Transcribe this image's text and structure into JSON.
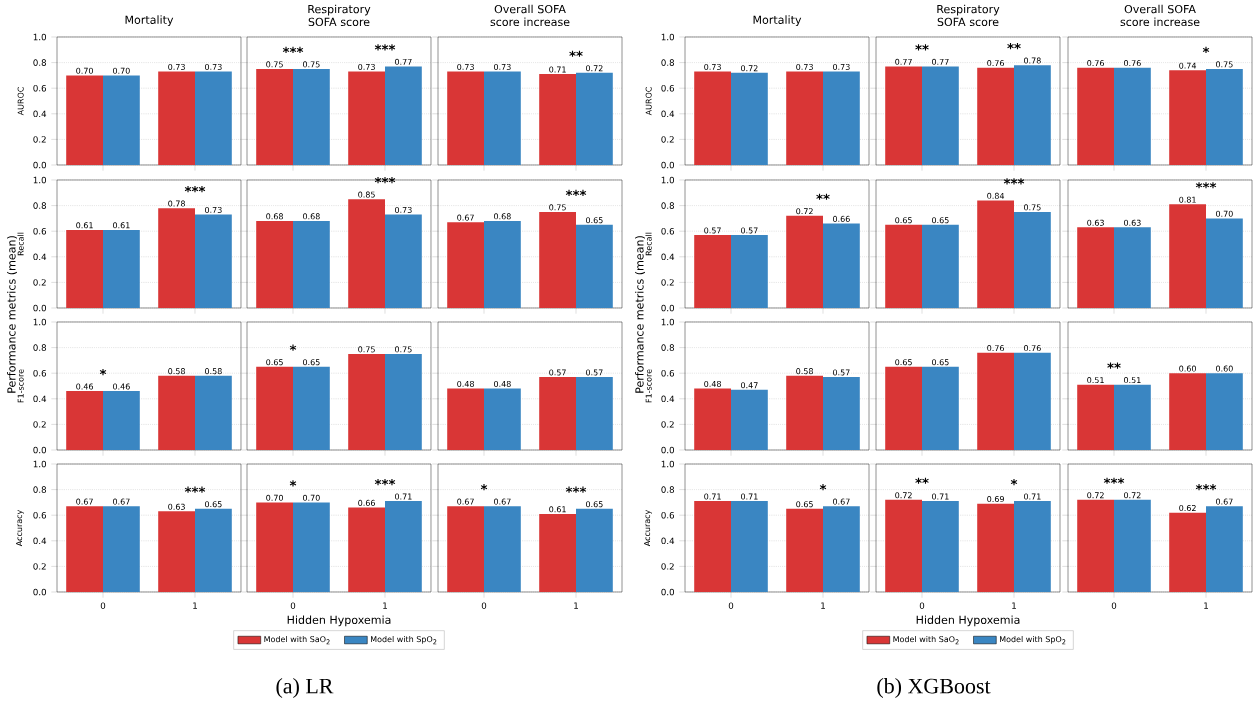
{
  "chart_data": [
    {
      "type": "bar",
      "title": "Mortality",
      "ylabel": "AUROC",
      "categories": [
        "0",
        "1"
      ],
      "series": [
        {
          "color": "#d93636",
          "values": [
            0.7,
            0.73
          ],
          "value_labels": [
            "0.70",
            "0.73"
          ]
        },
        {
          "color": "#3a86c2",
          "values": [
            0.7,
            0.73
          ],
          "value_labels": [
            "0.70",
            "0.73"
          ]
        }
      ],
      "ylim": [
        0,
        1
      ],
      "yticks": [
        {
          "value": 0,
          "label": "0.0"
        },
        {
          "value": 0.2,
          "label": "0.2"
        },
        {
          "value": 0.4,
          "label": "0.4"
        },
        {
          "value": 0.6,
          "label": "0.6"
        },
        {
          "value": 0.8,
          "label": "0.8"
        },
        {
          "value": 1,
          "label": "1.0"
        }
      ],
      "grid": "y",
      "tick_labels": "y"
    },
    {
      "type": "bar",
      "title": "Respiratory SOFA score",
      "categories": [
        "0",
        "1"
      ],
      "series": [
        {
          "color": "#d93636",
          "values": [
            0.75,
            0.73
          ],
          "value_labels": [
            "0.75",
            "0.73"
          ]
        },
        {
          "color": "#3a86c2",
          "values": [
            0.75,
            0.77
          ],
          "value_labels": [
            "0.75",
            "0.77"
          ]
        }
      ],
      "ylim": [
        0,
        1
      ],
      "yticks": [
        0,
        0.2,
        0.4,
        0.6,
        0.8,
        1
      ],
      "grid": "y",
      "tick_labels": false,
      "annotations": [
        "***",
        "***"
      ]
    },
    {
      "type": "bar",
      "title": "Overall SOFA score increase",
      "categories": [
        "0",
        "1"
      ],
      "series": [
        {
          "color": "#d93636",
          "values": [
            0.73,
            0.71
          ],
          "value_labels": [
            "0.73",
            "0.71"
          ]
        },
        {
          "color": "#3a86c2",
          "values": [
            0.73,
            0.72
          ],
          "value_labels": [
            "0.73",
            "0.72"
          ]
        }
      ],
      "ylim": [
        0,
        1
      ],
      "yticks": [
        0,
        0.2,
        0.4,
        0.6,
        0.8,
        1
      ],
      "grid": "y",
      "tick_labels": false,
      "annotations": [
        "**"
      ]
    },
    {
      "type": "bar",
      "ylabel": "Recall",
      "categories": [
        "0",
        "1"
      ],
      "series": [
        {
          "color": "#d93636",
          "values": [
            0.61,
            0.78
          ],
          "value_labels": [
            "0.61",
            "0.78"
          ]
        },
        {
          "color": "#3a86c2",
          "values": [
            0.61,
            0.73
          ],
          "value_labels": [
            "0.61",
            "0.73"
          ]
        }
      ],
      "ylim": [
        0,
        1
      ],
      "yticks": [
        {
          "value": 0,
          "label": "0.0"
        },
        {
          "value": 0.2,
          "label": "0.2"
        },
        {
          "value": 0.4,
          "label": "0.4"
        },
        {
          "value": 0.6,
          "label": "0.6"
        },
        {
          "value": 0.8,
          "label": "0.8"
        },
        {
          "value": 1,
          "label": "1.0"
        }
      ],
      "grid": "y",
      "tick_labels": "y",
      "annotations": [
        "***"
      ]
    },
    {
      "type": "bar",
      "categories": [
        "0",
        "1"
      ],
      "series": [
        {
          "color": "#d93636",
          "values": [
            0.68,
            0.85
          ],
          "value_labels": [
            "0.68",
            "0.85"
          ]
        },
        {
          "color": "#3a86c2",
          "values": [
            0.68,
            0.73
          ],
          "value_labels": [
            "0.68",
            "0.73"
          ]
        }
      ],
      "ylim": [
        0,
        1
      ],
      "yticks": [
        0,
        0.2,
        0.4,
        0.6,
        0.8,
        1
      ],
      "grid": "y",
      "tick_labels": false,
      "annotations": [
        "***"
      ]
    },
    {
      "type": "bar",
      "categories": [
        "0",
        "1"
      ],
      "series": [
        {
          "color": "#d93636",
          "values": [
            0.67,
            0.75
          ],
          "value_labels": [
            "0.67",
            "0.75"
          ]
        },
        {
          "color": "#3a86c2",
          "values": [
            0.68,
            0.65
          ],
          "value_labels": [
            "0.68",
            "0.65"
          ]
        }
      ],
      "ylim": [
        0,
        1
      ],
      "yticks": [
        0,
        0.2,
        0.4,
        0.6,
        0.8,
        1
      ],
      "grid": "y",
      "tick_labels": false,
      "annotations": [
        "***"
      ]
    },
    {
      "type": "bar",
      "ylabel": "F1-score",
      "categories": [
        "0",
        "1"
      ],
      "series": [
        {
          "color": "#d93636",
          "values": [
            0.46,
            0.58
          ],
          "value_labels": [
            "0.46",
            "0.58"
          ]
        },
        {
          "color": "#3a86c2",
          "values": [
            0.46,
            0.58
          ],
          "value_labels": [
            "0.46",
            "0.58"
          ]
        }
      ],
      "ylim": [
        0,
        1
      ],
      "yticks": [
        {
          "value": 0,
          "label": "0.0"
        },
        {
          "value": 0.2,
          "label": "0.2"
        },
        {
          "value": 0.4,
          "label": "0.4"
        },
        {
          "value": 0.6,
          "label": "0.6"
        },
        {
          "value": 0.8,
          "label": "0.8"
        },
        {
          "value": 1,
          "label": "1.0"
        }
      ],
      "grid": "y",
      "tick_labels": "y",
      "annotations": [
        "*"
      ]
    },
    {
      "type": "bar",
      "categories": [
        "0",
        "1"
      ],
      "series": [
        {
          "color": "#d93636",
          "values": [
            0.65,
            0.75
          ],
          "value_labels": [
            "0.65",
            "0.75"
          ]
        },
        {
          "color": "#3a86c2",
          "values": [
            0.65,
            0.75
          ],
          "value_labels": [
            "0.65",
            "0.75"
          ]
        }
      ],
      "ylim": [
        0,
        1
      ],
      "yticks": [
        0,
        0.2,
        0.4,
        0.6,
        0.8,
        1
      ],
      "grid": "y",
      "tick_labels": false,
      "annotations": [
        "*"
      ]
    },
    {
      "type": "bar",
      "categories": [
        "0",
        "1"
      ],
      "series": [
        {
          "color": "#d93636",
          "values": [
            0.48,
            0.57
          ],
          "value_labels": [
            "0.48",
            "0.57"
          ]
        },
        {
          "color": "#3a86c2",
          "values": [
            0.48,
            0.57
          ],
          "value_labels": [
            "0.48",
            "0.57"
          ]
        }
      ],
      "ylim": [
        0,
        1
      ],
      "yticks": [
        0,
        0.2,
        0.4,
        0.6,
        0.8,
        1
      ],
      "grid": "y",
      "tick_labels": false
    },
    {
      "type": "bar",
      "ylabel": "Accuracy",
      "categories": [
        "0",
        "1"
      ],
      "series": [
        {
          "color": "#d93636",
          "values": [
            0.67,
            0.63
          ],
          "value_labels": [
            "0.67",
            "0.63"
          ]
        },
        {
          "color": "#3a86c2",
          "values": [
            0.67,
            0.65
          ],
          "value_labels": [
            "0.67",
            "0.65"
          ]
        }
      ],
      "ylim": [
        0,
        1
      ],
      "yticks": [
        {
          "value": 0,
          "label": "0.0"
        },
        {
          "value": 0.2,
          "label": "0.2"
        },
        {
          "value": 0.4,
          "label": "0.4"
        },
        {
          "value": 0.6,
          "label": "0.6"
        },
        {
          "value": 0.8,
          "label": "0.8"
        },
        {
          "value": 1,
          "label": "1.0"
        }
      ],
      "grid": "y",
      "annotations": [
        "***"
      ]
    },
    {
      "type": "bar",
      "xlabel": "Hidden Hypoxemia",
      "categories": [
        "0",
        "1"
      ],
      "series": [
        {
          "name": "Model with SaO$_{2}$",
          "color": "#d93636",
          "values": [
            0.7,
            0.66
          ],
          "value_labels": [
            "0.70",
            "0.66"
          ]
        },
        {
          "name": "Model with SpO$_{2}$",
          "color": "#3a86c2",
          "values": [
            0.7,
            0.71
          ],
          "value_labels": [
            "0.70",
            "0.71"
          ]
        }
      ],
      "ylim": [
        0,
        1
      ],
      "yticks": [
        0,
        0.2,
        0.4,
        0.6,
        0.8,
        1
      ],
      "grid": "y",
      "tick_labels": "x",
      "legend": "bottom",
      "annotations": [
        "*",
        "***",
        "Performance metrics (mean)",
        "(a) LR"
      ]
    },
    {
      "type": "bar",
      "categories": [
        "0",
        "1"
      ],
      "series": [
        {
          "color": "#d93636",
          "values": [
            0.67,
            0.61
          ],
          "value_labels": [
            "0.67",
            "0.61"
          ]
        },
        {
          "color": "#3a86c2",
          "values": [
            0.67,
            0.65
          ],
          "value_labels": [
            "0.67",
            "0.65"
          ]
        }
      ],
      "ylim": [
        0,
        1
      ],
      "yticks": [
        0,
        0.2,
        0.4,
        0.6,
        0.8,
        1
      ],
      "grid": "y",
      "tick_labels": "x",
      "annotations": [
        "*",
        "***"
      ]
    },
    {
      "type": "bar",
      "title": "Mortality",
      "ylabel": "AUROC",
      "categories": [
        "0",
        "1"
      ],
      "series": [
        {
          "color": "#d93636",
          "values": [
            0.73,
            0.73
          ],
          "value_labels": [
            "0.73",
            "0.73"
          ]
        },
        {
          "color": "#3a86c2",
          "values": [
            0.72,
            0.73
          ],
          "value_labels": [
            "0.72",
            "0.73"
          ]
        }
      ],
      "ylim": [
        0,
        1
      ],
      "yticks": [
        {
          "value": 0,
          "label": "0.0"
        },
        {
          "value": 0.2,
          "label": "0.2"
        },
        {
          "value": 0.4,
          "label": "0.4"
        },
        {
          "value": 0.6,
          "label": "0.6"
        },
        {
          "value": 0.8,
          "label": "0.8"
        },
        {
          "value": 1,
          "label": "1.0"
        }
      ],
      "grid": "y",
      "tick_labels": "y"
    },
    {
      "type": "bar",
      "title": "Respiratory SOFA score",
      "categories": [
        "0",
        "1"
      ],
      "series": [
        {
          "color": "#d93636",
          "values": [
            0.77,
            0.76
          ],
          "value_labels": [
            "0.77",
            "0.76"
          ]
        },
        {
          "color": "#3a86c2",
          "values": [
            0.77,
            0.78
          ],
          "value_labels": [
            "0.77",
            "0.78"
          ]
        }
      ],
      "ylim": [
        0,
        1
      ],
      "yticks": [
        0,
        0.2,
        0.4,
        0.6,
        0.8,
        1
      ],
      "grid": "y",
      "tick_labels": false,
      "annotations": [
        "**",
        "**"
      ]
    },
    {
      "type": "bar",
      "title": "Overall SOFA score increase",
      "categories": [
        "0",
        "1"
      ],
      "series": [
        {
          "color": "#d93636",
          "values": [
            0.76,
            0.74
          ],
          "value_labels": [
            "0.76",
            "0.74"
          ]
        },
        {
          "color": "#3a86c2",
          "values": [
            0.76,
            0.75
          ],
          "value_labels": [
            "0.76",
            "0.75"
          ]
        }
      ],
      "ylim": [
        0,
        1
      ],
      "yticks": [
        0,
        0.2,
        0.4,
        0.6,
        0.8,
        1
      ],
      "grid": "y",
      "tick_labels": false,
      "annotations": [
        "*"
      ]
    },
    {
      "type": "bar",
      "ylabel": "Recall",
      "categories": [
        "0",
        "1"
      ],
      "series": [
        {
          "color": "#d93636",
          "values": [
            0.57,
            0.72
          ],
          "value_labels": [
            "0.57",
            "0.72"
          ]
        },
        {
          "color": "#3a86c2",
          "values": [
            0.57,
            0.66
          ],
          "value_labels": [
            "0.57",
            "0.66"
          ]
        }
      ],
      "ylim": [
        0,
        1
      ],
      "yticks": [
        {
          "value": 0,
          "label": "0.0"
        },
        {
          "value": 0.2,
          "label": "0.2"
        },
        {
          "value": 0.4,
          "label": "0.4"
        },
        {
          "value": 0.6,
          "label": "0.6"
        },
        {
          "value": 0.8,
          "label": "0.8"
        },
        {
          "value": 1,
          "label": "1.0"
        }
      ],
      "grid": "y",
      "tick_labels": "y",
      "annotations": [
        "**"
      ]
    },
    {
      "type": "bar",
      "categories": [
        "0",
        "1"
      ],
      "series": [
        {
          "color": "#d93636",
          "values": [
            0.65,
            0.84
          ],
          "value_labels": [
            "0.65",
            "0.84"
          ]
        },
        {
          "color": "#3a86c2",
          "values": [
            0.65,
            0.75
          ],
          "value_labels": [
            "0.65",
            "0.75"
          ]
        }
      ],
      "ylim": [
        0,
        1
      ],
      "yticks": [
        0,
        0.2,
        0.4,
        0.6,
        0.8,
        1
      ],
      "grid": "y",
      "tick_labels": false,
      "annotations": [
        "***"
      ]
    },
    {
      "type": "bar",
      "categories": [
        "0",
        "1"
      ],
      "series": [
        {
          "color": "#d93636",
          "values": [
            0.63,
            0.81
          ],
          "value_labels": [
            "0.63",
            "0.81"
          ]
        },
        {
          "color": "#3a86c2",
          "values": [
            0.63,
            0.7
          ],
          "value_labels": [
            "0.63",
            "0.70"
          ]
        }
      ],
      "ylim": [
        0,
        1
      ],
      "yticks": [
        0,
        0.2,
        0.4,
        0.6,
        0.8,
        1
      ],
      "grid": "y",
      "tick_labels": false,
      "annotations": [
        "***"
      ]
    },
    {
      "type": "bar",
      "ylabel": "F1-score",
      "categories": [
        "0",
        "1"
      ],
      "series": [
        {
          "color": "#d93636",
          "values": [
            0.48,
            0.58
          ],
          "value_labels": [
            "0.48",
            "0.58"
          ]
        },
        {
          "color": "#3a86c2",
          "values": [
            0.47,
            0.57
          ],
          "value_labels": [
            "0.47",
            "0.57"
          ]
        }
      ],
      "ylim": [
        0,
        1
      ],
      "yticks": [
        {
          "value": 0,
          "label": "0.0"
        },
        {
          "value": 0.2,
          "label": "0.2"
        },
        {
          "value": 0.4,
          "label": "0.4"
        },
        {
          "value": 0.6,
          "label": "0.6"
        },
        {
          "value": 0.8,
          "label": "0.8"
        },
        {
          "value": 1,
          "label": "1.0"
        }
      ],
      "grid": "y",
      "tick_labels": "y"
    },
    {
      "type": "bar",
      "categories": [
        "0",
        "1"
      ],
      "series": [
        {
          "color": "#d93636",
          "values": [
            0.65,
            0.76
          ],
          "value_labels": [
            "0.65",
            "0.76"
          ]
        },
        {
          "color": "#3a86c2",
          "values": [
            0.65,
            0.76
          ],
          "value_labels": [
            "0.65",
            "0.76"
          ]
        }
      ],
      "ylim": [
        0,
        1
      ],
      "yticks": [
        0,
        0.2,
        0.4,
        0.6,
        0.8,
        1
      ],
      "grid": "y",
      "tick_labels": false
    },
    {
      "type": "bar",
      "categories": [
        "0",
        "1"
      ],
      "series": [
        {
          "color": "#d93636",
          "values": [
            0.51,
            0.6
          ],
          "value_labels": [
            "0.51",
            "0.60"
          ]
        },
        {
          "color": "#3a86c2",
          "values": [
            0.51,
            0.6
          ],
          "value_labels": [
            "0.51",
            "0.60"
          ]
        }
      ],
      "ylim": [
        0,
        1
      ],
      "yticks": [
        0,
        0.2,
        0.4,
        0.6,
        0.8,
        1
      ],
      "grid": "y",
      "tick_labels": false,
      "annotations": [
        "**"
      ]
    },
    {
      "type": "bar",
      "ylabel": "Accuracy",
      "categories": [
        "0",
        "1"
      ],
      "series": [
        {
          "color": "#d93636",
          "values": [
            0.71,
            0.65
          ],
          "value_labels": [
            "0.71",
            "0.65"
          ]
        },
        {
          "color": "#3a86c2",
          "values": [
            0.71,
            0.67
          ],
          "value_labels": [
            "0.71",
            "0.67"
          ]
        }
      ],
      "ylim": [
        0,
        1
      ],
      "yticks": [
        {
          "value": 0,
          "label": "0.0"
        },
        {
          "value": 0.2,
          "label": "0.2"
        },
        {
          "value": 0.4,
          "label": "0.4"
        },
        {
          "value": 0.6,
          "label": "0.6"
        },
        {
          "value": 0.8,
          "label": "0.8"
        },
        {
          "value": 1,
          "label": "1.0"
        }
      ],
      "grid": "y",
      "annotations": [
        "*"
      ]
    },
    {
      "type": "bar",
      "xlabel": "Hidden Hypoxemia",
      "categories": [
        "0",
        "1"
      ],
      "series": [
        {
          "name": "Model with SaO$_{2}$",
          "color": "#d93636",
          "values": [
            0.72,
            0.69
          ],
          "value_labels": [
            "0.72",
            "0.69"
          ]
        },
        {
          "name": "Model with SpO$_{2}$",
          "color": "#3a86c2",
          "values": [
            0.71,
            0.71
          ],
          "value_labels": [
            "0.71",
            "0.71"
          ]
        }
      ],
      "ylim": [
        0,
        1
      ],
      "yticks": [
        0,
        0.2,
        0.4,
        0.6,
        0.8,
        1
      ],
      "grid": "y",
      "tick_labels": "x",
      "legend": "bottom",
      "annotations": [
        "**",
        "*",
        "Performance metrics (mean)",
        "(b) XGBoost"
      ]
    },
    {
      "type": "bar",
      "categories": [
        "0",
        "1"
      ],
      "series": [
        {
          "color": "#d93636",
          "values": [
            0.72,
            0.62
          ],
          "value_labels": [
            "0.72",
            "0.62"
          ]
        },
        {
          "color": "#3a86c2",
          "values": [
            0.72,
            0.67
          ],
          "value_labels": [
            "0.72",
            "0.67"
          ]
        }
      ],
      "ylim": [
        0,
        1
      ],
      "yticks": [
        0,
        0.2,
        0.4,
        0.6,
        0.8,
        1
      ],
      "grid": "y",
      "tick_labels": "x",
      "annotations": [
        "***",
        "***"
      ]
    }
  ]
}
